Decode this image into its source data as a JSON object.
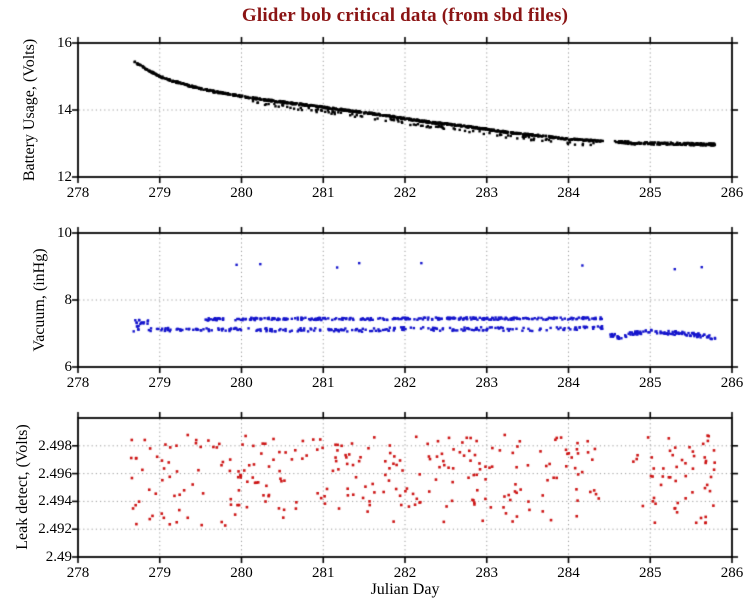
{
  "figure": {
    "title": "Glider bob critical data (from sbd files)",
    "title_color": "#8B1414",
    "xlabel": "Julian Day",
    "background": "#FFFFFF",
    "axis_color": "#000000",
    "grid_color": "#999999"
  },
  "chart_data": [
    {
      "name": "battery",
      "type": "scatter",
      "ylabel": "Battery Usage, (Volts)",
      "color": "#000000",
      "marker_px": 2.4,
      "xlim": [
        278,
        286
      ],
      "ylim": [
        12,
        16
      ],
      "xticks": [
        278,
        279,
        280,
        281,
        282,
        283,
        284,
        285,
        286
      ],
      "yticks": [
        12,
        14,
        16
      ],
      "grid_x": [
        279,
        280,
        281,
        282,
        283,
        284,
        285
      ],
      "grid_y": [
        14
      ],
      "seed": 101,
      "series": [
        {
          "name": "battery-main",
          "mode": "trend",
          "n": 900,
          "jitter": 0.025,
          "trend": [
            [
              278.67,
              15.45
            ],
            [
              278.76,
              15.34
            ],
            [
              278.85,
              15.2
            ],
            [
              279.0,
              15.0
            ],
            [
              279.15,
              14.87
            ],
            [
              279.35,
              14.73
            ],
            [
              279.6,
              14.58
            ],
            [
              279.85,
              14.47
            ],
            [
              280.1,
              14.37
            ],
            [
              280.4,
              14.27
            ],
            [
              280.7,
              14.17
            ],
            [
              281.0,
              14.08
            ],
            [
              281.35,
              13.97
            ],
            [
              281.7,
              13.86
            ],
            [
              282.0,
              13.74
            ],
            [
              282.35,
              13.62
            ],
            [
              282.7,
              13.53
            ],
            [
              283.0,
              13.42
            ],
            [
              283.35,
              13.3
            ],
            [
              283.7,
              13.22
            ],
            [
              284.0,
              13.13
            ],
            [
              284.42,
              13.07
            ]
          ]
        },
        {
          "name": "battery-lower-band",
          "mode": "trend",
          "n": 110,
          "jitter": 0.05,
          "y_offset": -0.12,
          "trend": [
            [
              280.1,
              14.37
            ],
            [
              280.4,
              14.27
            ],
            [
              280.7,
              14.17
            ],
            [
              281.0,
              14.08
            ],
            [
              281.35,
              13.97
            ],
            [
              281.7,
              13.86
            ],
            [
              282.0,
              13.74
            ],
            [
              282.35,
              13.62
            ],
            [
              282.7,
              13.53
            ],
            [
              283.0,
              13.42
            ],
            [
              283.35,
              13.3
            ],
            [
              283.7,
              13.22
            ],
            [
              284.0,
              13.13
            ],
            [
              284.42,
              13.07
            ]
          ]
        },
        {
          "name": "battery-after-gap",
          "mode": "trend",
          "n": 180,
          "jitter": 0.035,
          "trend": [
            [
              284.56,
              13.05
            ],
            [
              284.8,
              13.01
            ],
            [
              285.1,
              13.0
            ],
            [
              285.4,
              12.99
            ],
            [
              285.8,
              12.96
            ]
          ]
        }
      ]
    },
    {
      "name": "vacuum",
      "type": "scatter",
      "ylabel": "Vacuum, (inHg)",
      "color": "#1414CC",
      "marker_px": 2.4,
      "xlim": [
        278,
        286
      ],
      "ylim": [
        6,
        10
      ],
      "xticks": [
        278,
        279,
        280,
        281,
        282,
        283,
        284,
        285,
        286
      ],
      "yticks": [
        6,
        8,
        10
      ],
      "grid_x": [
        279,
        280,
        281,
        282,
        283,
        284,
        285
      ],
      "grid_y": [
        8
      ],
      "seed": 202,
      "series": [
        {
          "name": "vacuum-upper-band",
          "mode": "trend",
          "n": 300,
          "jitter": 0.035,
          "trend": [
            [
              279.55,
              7.42
            ],
            [
              280.5,
              7.44
            ],
            [
              281.5,
              7.43
            ],
            [
              282.5,
              7.45
            ],
            [
              283.5,
              7.44
            ],
            [
              284.42,
              7.45
            ]
          ]
        },
        {
          "name": "vacuum-lower-band",
          "mode": "trend",
          "n": 250,
          "jitter": 0.05,
          "trend": [
            [
              278.68,
              7.1
            ],
            [
              279.0,
              7.12
            ],
            [
              279.5,
              7.1
            ],
            [
              280.0,
              7.13
            ],
            [
              280.5,
              7.1
            ],
            [
              281.0,
              7.12
            ],
            [
              281.5,
              7.1
            ],
            [
              282.0,
              7.15
            ],
            [
              282.5,
              7.12
            ],
            [
              283.0,
              7.14
            ],
            [
              283.5,
              7.12
            ],
            [
              284.0,
              7.15
            ],
            [
              284.42,
              7.17
            ]
          ]
        },
        {
          "name": "vacuum-start-cluster",
          "mode": "trend",
          "n": 16,
          "jitter": 0.1,
          "trend": [
            [
              278.7,
              7.3
            ],
            [
              278.98,
              7.33
            ]
          ]
        },
        {
          "name": "vacuum-after-gap",
          "mode": "trend",
          "n": 110,
          "jitter": 0.06,
          "trend": [
            [
              284.5,
              6.97
            ],
            [
              284.62,
              6.9
            ],
            [
              284.78,
              6.99
            ],
            [
              285.0,
              7.05
            ],
            [
              285.2,
              7.03
            ],
            [
              285.45,
              6.99
            ],
            [
              285.65,
              6.93
            ],
            [
              285.8,
              6.86
            ]
          ]
        },
        {
          "name": "vacuum-outliers",
          "mode": "points",
          "points": [
            [
              279.94,
              9.05
            ],
            [
              280.23,
              9.07
            ],
            [
              281.17,
              8.97
            ],
            [
              281.44,
              9.1
            ],
            [
              282.2,
              9.1
            ],
            [
              284.17,
              9.03
            ],
            [
              285.3,
              8.92
            ],
            [
              285.63,
              8.98
            ]
          ]
        }
      ]
    },
    {
      "name": "leak-detect",
      "type": "scatter",
      "ylabel": "Leak detect, (Volts)",
      "color": "#CC1414",
      "marker_px": 2.6,
      "xlim": [
        278,
        286
      ],
      "ylim": [
        2.49,
        2.5
      ],
      "xticks": [
        278,
        279,
        280,
        281,
        282,
        283,
        284,
        285,
        286
      ],
      "yticks": [
        2.49,
        2.492,
        2.494,
        2.496,
        2.498
      ],
      "grid_x": [
        279,
        280,
        281,
        282,
        283,
        284,
        285
      ],
      "grid_y": [
        2.492,
        2.494,
        2.496,
        2.498
      ],
      "seed": 303,
      "series": [
        {
          "name": "leak-scatter",
          "mode": "uniform",
          "n": 325,
          "x_range": [
            278.65,
            285.8
          ],
          "gaps": [
            [
              284.45,
              284.78
            ]
          ],
          "bands": [
            {
              "frac": 0.85,
              "range": [
                2.4937,
                2.4988
              ]
            },
            {
              "frac": 0.15,
              "range": [
                2.4922,
                2.4941
              ]
            }
          ]
        }
      ]
    }
  ]
}
